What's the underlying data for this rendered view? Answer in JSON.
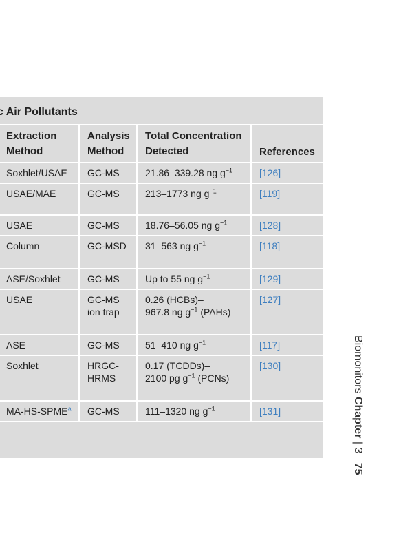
{
  "table": {
    "title": "c Air Pollutants",
    "headers": [
      "Extraction\nMethod",
      "Analysis\nMethod",
      "Total Concentration\nDetected",
      "References"
    ],
    "rows": [
      [
        "Soxhlet/USAE",
        "GC-MS",
        {
          "pre": "21.86–339.28 ng g",
          "sup": "−1"
        },
        "[126]"
      ],
      [
        "USAE/MAE",
        "GC-MS",
        {
          "pre": "213–1773 ng g",
          "sup": "−1"
        },
        "[119]"
      ],
      [
        "USAE",
        "GC-MS",
        {
          "pre": "18.76–56.05 ng g",
          "sup": "−1"
        },
        "[128]"
      ],
      [
        "Column",
        "GC-MSD",
        {
          "pre": "31–563 ng g",
          "sup": "−1"
        },
        "[118]"
      ],
      [
        "ASE/Soxhlet",
        "GC-MS",
        {
          "pre": "Up to 55 ng g",
          "sup": "−1"
        },
        "[129]"
      ],
      [
        "USAE",
        "GC-MS\nion trap",
        {
          "pre": "0.26 (HCBs)–\n967.8 ng g",
          "sup": "−1",
          "post": " (PAHs)"
        },
        "[127]"
      ],
      [
        "ASE",
        "GC-MS",
        {
          "pre": "51–410 ng g",
          "sup": "−1"
        },
        "[117]"
      ],
      [
        "Soxhlet",
        "HRGC-\nHRMS",
        {
          "pre": "0.17 (TCDDs)–\n2100 pg g",
          "sup": "−1",
          "post": " (PCNs)"
        },
        "[130]"
      ],
      [
        "MA-HS-SPME",
        "GC-MS",
        {
          "pre": "111–1320 ng g",
          "sup": "−1"
        },
        "[131]"
      ]
    ],
    "footnote_marks": {
      "8": "a"
    }
  },
  "running_head": {
    "section": "Biomonitors",
    "chapter": "Chapter",
    "separator": "|",
    "chapter_number": "3",
    "page_number": "75"
  }
}
